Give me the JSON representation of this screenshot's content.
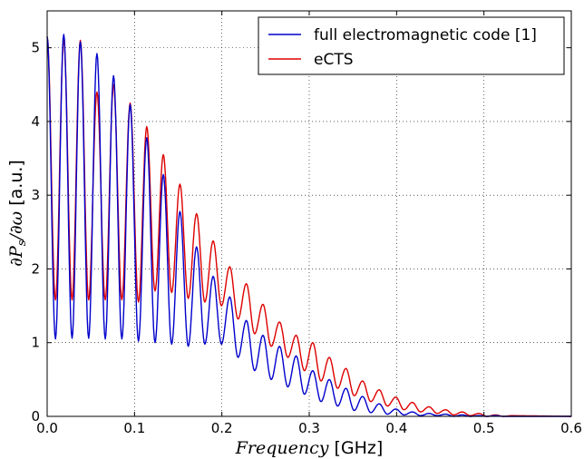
{
  "chart_data": {
    "type": "line",
    "xlabel": {
      "math": "Frequency",
      "unit": " [GHz]"
    },
    "ylabel": {
      "math": "∂P",
      "sub": "s",
      "math2": "/∂ω",
      "unit": " [a.u.]"
    },
    "xlim": [
      0,
      0.6
    ],
    "ylim": [
      0,
      5.5
    ],
    "xticks": [
      0,
      0.1,
      0.2,
      0.3,
      0.4,
      0.5,
      0.6
    ],
    "xtick_labels": [
      "0.0",
      "0.1",
      "0.2",
      "0.3",
      "0.4",
      "0.5",
      "0.6"
    ],
    "yticks": [
      0,
      1,
      2,
      3,
      4,
      5
    ],
    "ytick_labels": [
      "0",
      "1",
      "2",
      "3",
      "4",
      "5"
    ],
    "grid": true,
    "legend_position": "top-right",
    "series": [
      {
        "name": "full electromagnetic code [1]",
        "color": "#0000cc",
        "peaks_x": [
          0.0,
          0.019,
          0.038,
          0.057,
          0.076,
          0.095,
          0.114,
          0.133,
          0.152,
          0.171,
          0.19,
          0.209,
          0.228,
          0.247,
          0.266,
          0.285,
          0.304,
          0.323,
          0.342,
          0.361,
          0.38,
          0.399,
          0.418,
          0.437,
          0.456,
          0.475,
          0.494,
          0.513,
          0.532
        ],
        "peaks_y": [
          5.15,
          5.18,
          5.08,
          4.92,
          4.62,
          4.23,
          3.78,
          3.28,
          2.78,
          2.3,
          1.9,
          1.62,
          1.3,
          1.1,
          0.95,
          0.82,
          0.62,
          0.5,
          0.38,
          0.27,
          0.17,
          0.1,
          0.06,
          0.04,
          0.03,
          0.02,
          0.01,
          0.01,
          0.0
        ],
        "troughs_y": [
          1.05,
          1.06,
          1.06,
          1.05,
          1.05,
          1.02,
          1.0,
          0.98,
          0.95,
          0.98,
          0.98,
          0.8,
          0.62,
          0.5,
          0.4,
          0.3,
          0.2,
          0.14,
          0.08,
          0.05,
          0.03,
          0.02,
          0.01,
          0.01,
          0.0,
          0.0,
          0.0,
          0.0
        ]
      },
      {
        "name": "eCTS",
        "color": "#dd0000",
        "peaks_x": [
          0.0,
          0.019,
          0.038,
          0.057,
          0.076,
          0.095,
          0.114,
          0.133,
          0.152,
          0.171,
          0.19,
          0.209,
          0.228,
          0.247,
          0.266,
          0.285,
          0.304,
          0.323,
          0.342,
          0.361,
          0.38,
          0.399,
          0.418,
          0.437,
          0.456,
          0.475,
          0.494,
          0.513,
          0.532
        ],
        "peaks_y": [
          5.15,
          5.1,
          5.1,
          4.4,
          4.5,
          4.25,
          3.93,
          3.55,
          3.15,
          2.75,
          2.38,
          2.03,
          1.8,
          1.52,
          1.28,
          1.1,
          1.0,
          0.8,
          0.65,
          0.48,
          0.36,
          0.26,
          0.19,
          0.13,
          0.09,
          0.06,
          0.04,
          0.02,
          0.01
        ],
        "troughs_y": [
          1.58,
          1.58,
          1.58,
          1.58,
          1.58,
          1.55,
          1.7,
          1.68,
          1.6,
          1.55,
          1.5,
          1.32,
          1.12,
          0.95,
          0.8,
          0.62,
          0.48,
          0.38,
          0.28,
          0.2,
          0.14,
          0.09,
          0.06,
          0.04,
          0.02,
          0.01,
          0.0,
          0.0
        ]
      }
    ]
  }
}
